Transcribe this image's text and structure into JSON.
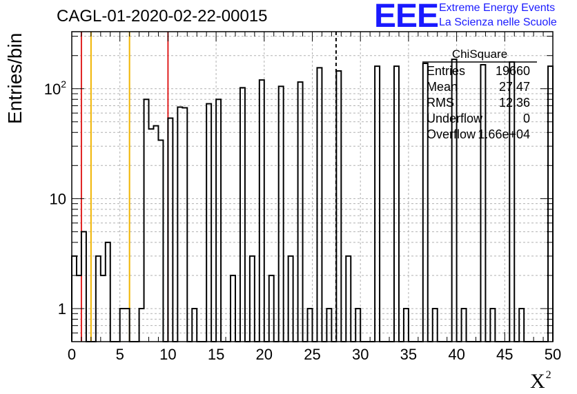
{
  "header": {
    "run_title": "CAGL-01-2020-02-22-00015",
    "logo_text": "EEE",
    "logo_line1": "Extreme Energy Events",
    "logo_line2": "La Scienza nelle Scuole"
  },
  "stats": {
    "title": "ChiSquare",
    "rows": [
      {
        "label": "Entries",
        "value": "19660"
      },
      {
        "label": "Mean",
        "value": "27.47"
      },
      {
        "label": "RMS",
        "value": "12.36"
      },
      {
        "label": "Underflow",
        "value": "0"
      },
      {
        "label": "Overflow",
        "value": "1.66e+04"
      }
    ]
  },
  "axes": {
    "ylabel": "Entries/bin",
    "xlabel": "X",
    "xlabel_sup": "2"
  },
  "colors": {
    "red_lines": "#e02020",
    "yellow_lines": "#f0b400",
    "grid": "#b0b0b0",
    "histogram": "#000000",
    "logo": "#1a1aff"
  },
  "chart_data": {
    "type": "histogram",
    "xlim": [
      0,
      50
    ],
    "ylim": [
      0.5,
      330
    ],
    "yscale": "log",
    "grid": true,
    "bin_width": 0.5,
    "x_ticks": [
      0,
      5,
      10,
      15,
      20,
      25,
      30,
      35,
      40,
      45,
      50
    ],
    "x_tick_labels": [
      "0",
      "5",
      "10",
      "15",
      "20",
      "25",
      "30",
      "35",
      "40",
      "45",
      "50"
    ],
    "y_ticks": [
      1,
      10,
      100
    ],
    "y_tick_labels": [
      "1",
      "10",
      "10^2"
    ],
    "values": [
      3,
      2,
      5,
      0,
      0,
      3,
      2,
      4,
      0,
      0,
      1,
      1,
      0,
      0,
      1,
      80,
      43,
      46,
      34,
      0,
      54,
      0,
      68,
      67,
      0,
      1,
      0,
      0,
      73,
      0,
      80,
      0,
      0,
      2,
      0,
      102,
      0,
      3,
      0,
      120,
      0,
      2,
      0,
      105,
      0,
      3,
      0,
      115,
      0,
      1,
      0,
      155,
      0,
      1,
      0,
      145,
      0,
      3,
      0,
      1,
      0,
      0,
      0,
      160,
      0,
      0,
      0,
      160,
      0,
      1,
      0,
      0,
      0,
      170,
      0,
      1,
      0,
      0,
      0,
      185,
      0,
      1,
      0,
      0,
      0,
      165,
      0,
      1,
      0,
      0,
      0,
      175,
      0,
      1,
      0,
      0,
      0,
      0,
      0,
      160
    ],
    "reference_lines": [
      {
        "x": 1,
        "color": "red"
      },
      {
        "x": 2,
        "color": "yellow"
      },
      {
        "x": 6,
        "color": "yellow"
      },
      {
        "x": 10,
        "color": "red"
      },
      {
        "x": 27.47,
        "color": "black",
        "style": "dotted"
      }
    ]
  }
}
